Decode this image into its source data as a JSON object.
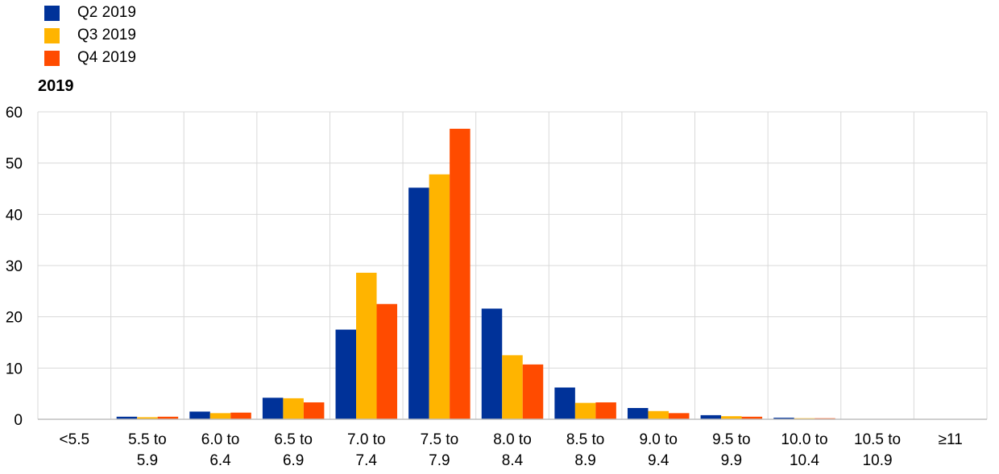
{
  "chart_data": {
    "type": "bar",
    "title": "2019",
    "categories": [
      [
        "<5.5"
      ],
      [
        "5.5 to",
        "5.9"
      ],
      [
        "6.0 to",
        "6.4"
      ],
      [
        "6.5 to",
        "6.9"
      ],
      [
        "7.0 to",
        "7.4"
      ],
      [
        "7.5 to",
        "7.9"
      ],
      [
        "8.0 to",
        "8.4"
      ],
      [
        "8.5 to",
        "8.9"
      ],
      [
        "9.0 to",
        "9.4"
      ],
      [
        "9.5 to",
        "9.9"
      ],
      [
        "10.0 to",
        "10.4"
      ],
      [
        "10.5 to",
        "10.9"
      ],
      [
        "≥11"
      ]
    ],
    "series": [
      {
        "name": "Q2 2019",
        "color": "#003299",
        "values": [
          0,
          0.5,
          1.5,
          4.2,
          17.5,
          45.2,
          21.6,
          6.2,
          2.2,
          0.8,
          0.3,
          0,
          0
        ]
      },
      {
        "name": "Q3 2019",
        "color": "#FFB400",
        "values": [
          0,
          0.4,
          1.2,
          4.1,
          28.6,
          47.8,
          12.5,
          3.2,
          1.6,
          0.6,
          0.2,
          0,
          0
        ]
      },
      {
        "name": "Q4 2019",
        "color": "#FF4B00",
        "values": [
          0,
          0.5,
          1.3,
          3.3,
          22.5,
          56.7,
          10.7,
          3.3,
          1.2,
          0.5,
          0.2,
          0,
          0
        ]
      }
    ],
    "y_ticks": [
      "0",
      "10",
      "20",
      "30",
      "40",
      "50",
      "60"
    ],
    "ylim": [
      0,
      60
    ],
    "xlabel": "",
    "ylabel": "",
    "grid": true,
    "legend_position": "top-left"
  }
}
